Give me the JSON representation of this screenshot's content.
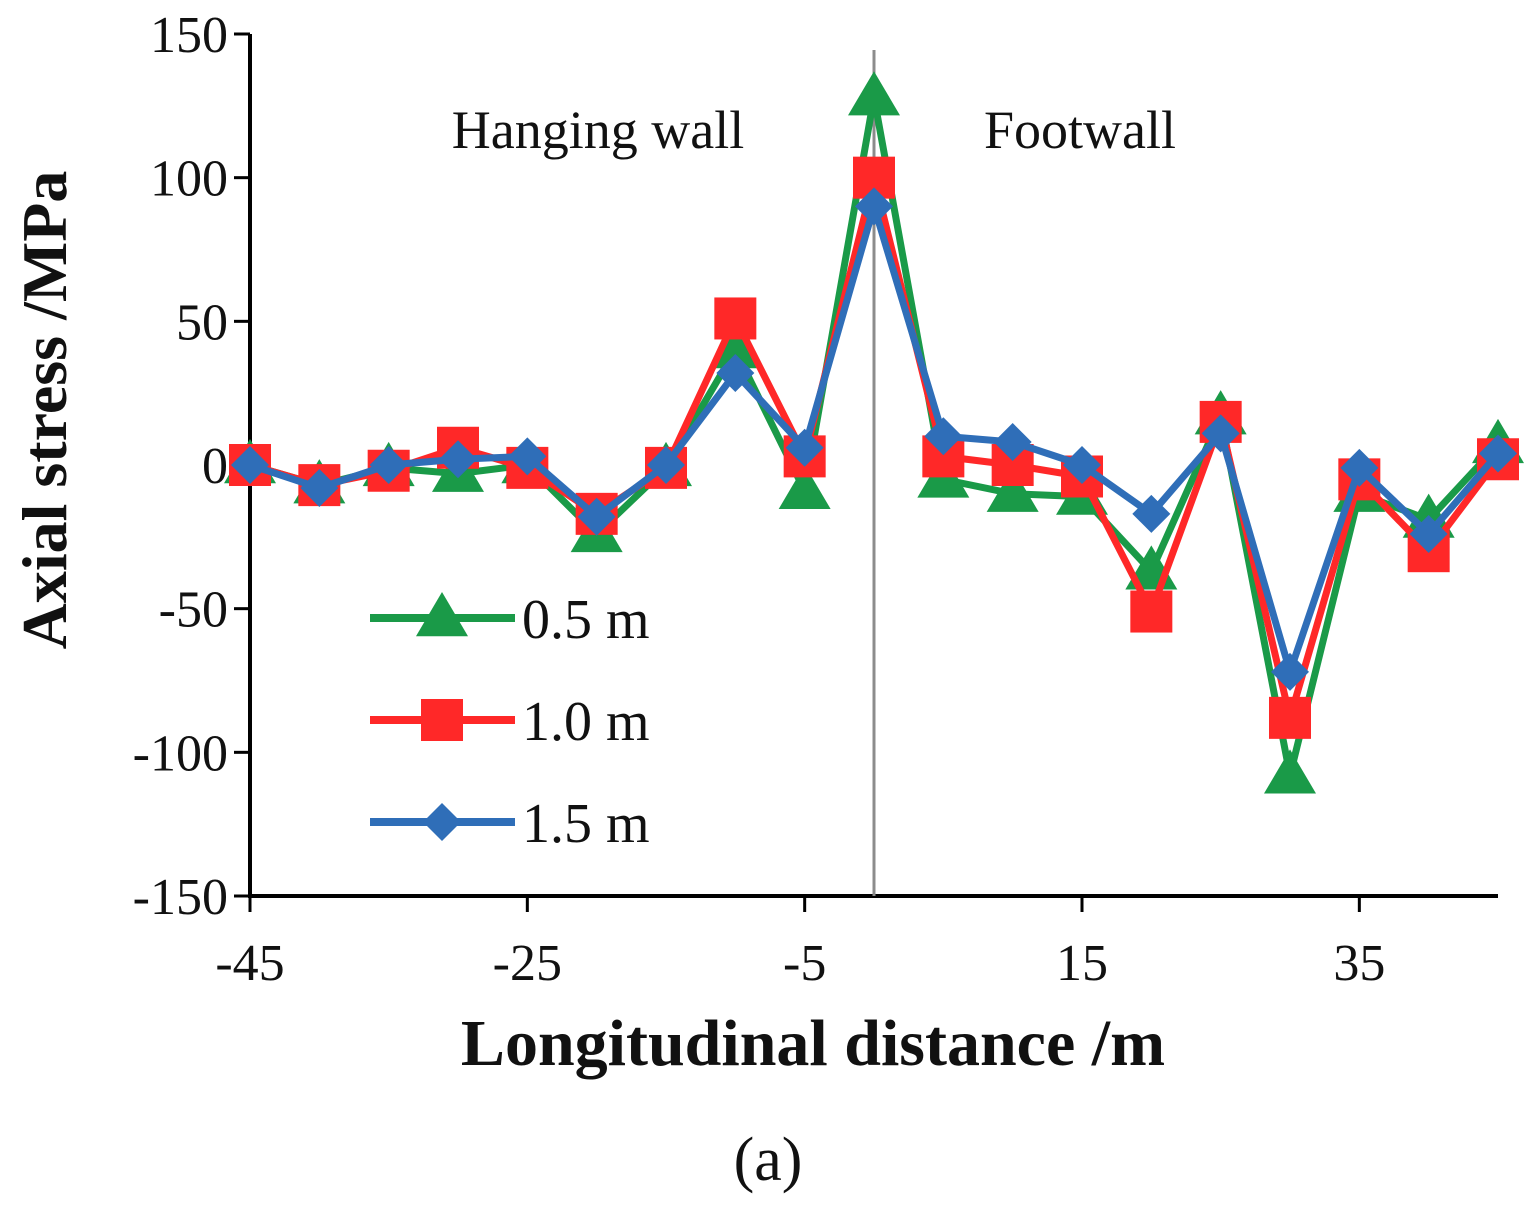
{
  "chart_data": {
    "type": "line",
    "title": "",
    "panel_label": "(a)",
    "xlabel": "Longitudinal distance /m",
    "ylabel": "Axial stress /MPa",
    "xlim": [
      -45,
      45
    ],
    "ylim": [
      -150,
      150
    ],
    "x_ticks": [
      -45,
      -25,
      -5,
      15,
      35
    ],
    "x_tick_labels": [
      "-45",
      "-25",
      "-5",
      "15",
      "35"
    ],
    "y_ticks": [
      150,
      100,
      50,
      0,
      -50,
      -100,
      -150
    ],
    "y_tick_labels": [
      "150",
      "100",
      "50",
      "0",
      "-50",
      "-100",
      "-150"
    ],
    "fault_line_x": 0,
    "annotations": [
      {
        "text": "Hanging wall",
        "side": "left of fault"
      },
      {
        "text": "Footwall",
        "side": "right of fault"
      }
    ],
    "legend_position": "bottom-left",
    "x": [
      -45,
      -40,
      -35,
      -30,
      -25,
      -20,
      -15,
      -10,
      -5,
      0,
      5,
      10,
      15,
      20,
      25,
      30,
      35,
      40,
      45
    ],
    "series": [
      {
        "name": "0.5 m",
        "marker": "triangle",
        "color": "#1a9a48",
        "values": [
          0,
          -7,
          -1,
          -3,
          0,
          -24,
          -1,
          40,
          -9,
          128,
          -5,
          -10,
          -11,
          -37,
          17,
          -108,
          -10,
          -19,
          7
        ]
      },
      {
        "name": "1.0 m",
        "marker": "square",
        "color": "#ff2828",
        "values": [
          0,
          -7,
          -2,
          6,
          -1,
          -17,
          -1,
          51,
          3,
          100,
          3,
          0,
          -4,
          -51,
          15,
          -88,
          -5,
          -30,
          2
        ]
      },
      {
        "name": "1.5 m",
        "marker": "diamond",
        "color": "#2f6eb8",
        "values": [
          0,
          -8,
          0,
          2,
          3,
          -18,
          0,
          32,
          6,
          90,
          10,
          8,
          0,
          -17,
          11,
          -72,
          -1,
          -24,
          4
        ]
      }
    ]
  }
}
